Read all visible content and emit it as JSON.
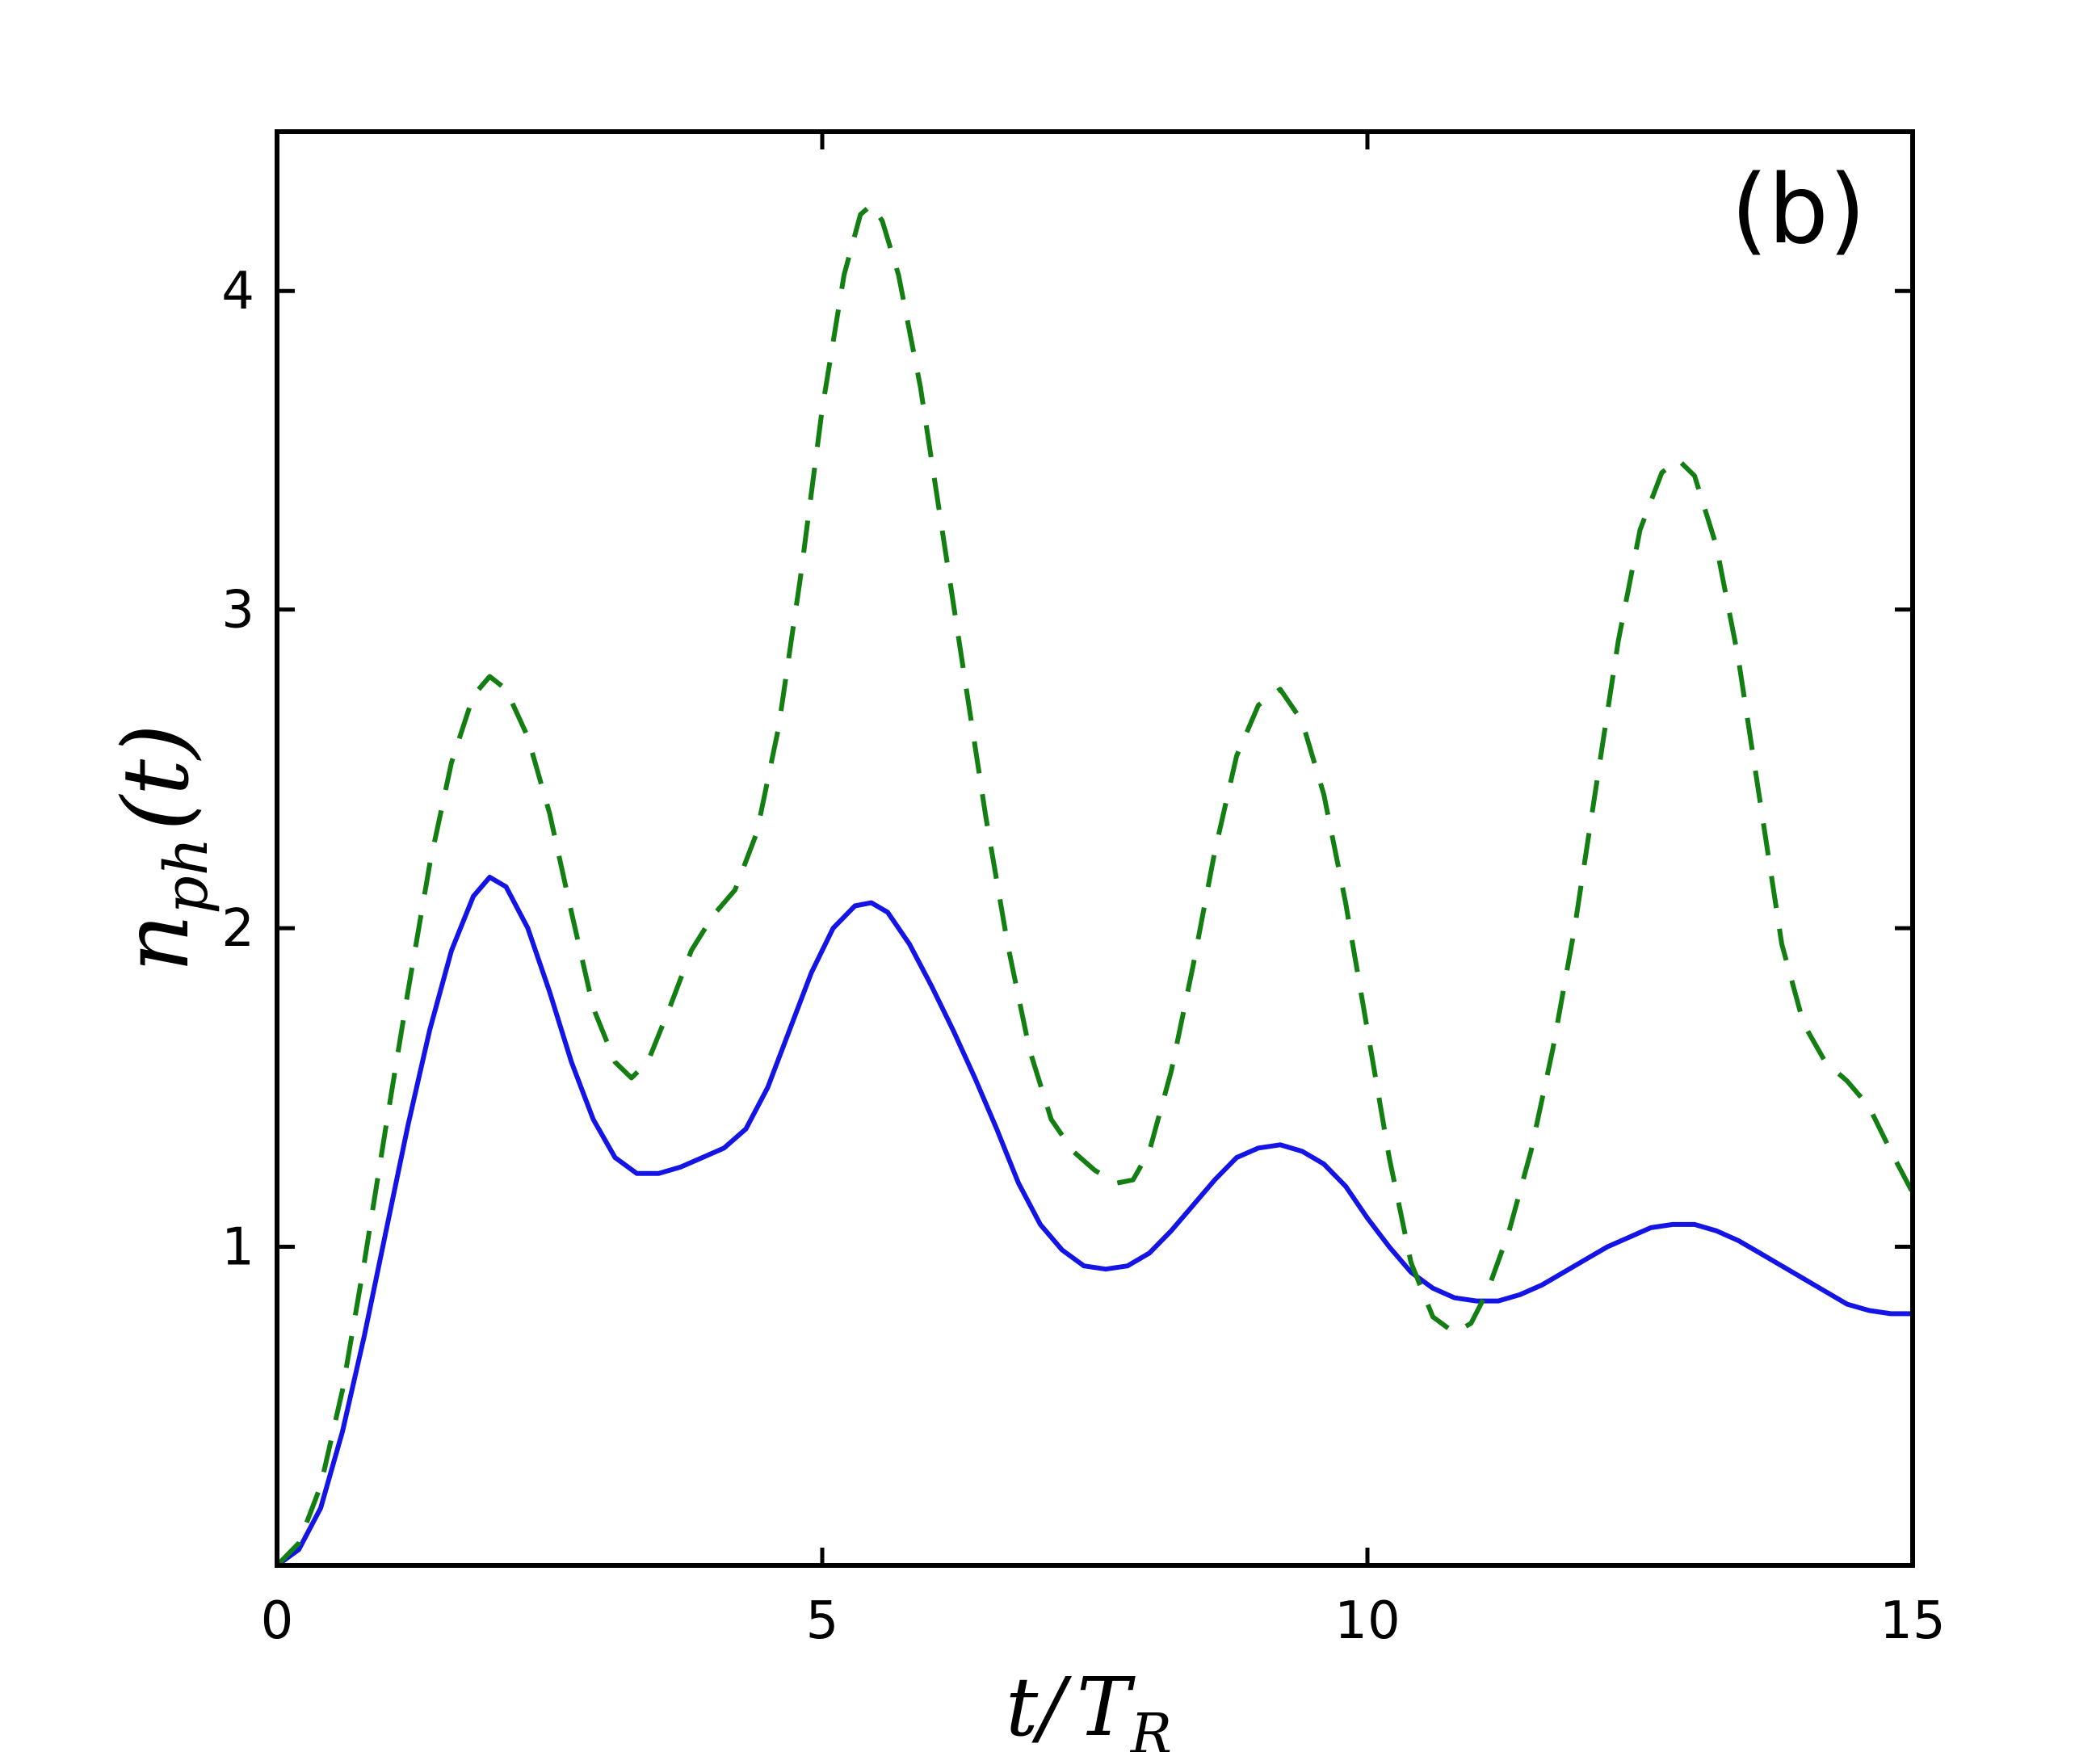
{
  "chart_data": {
    "type": "line",
    "panel_label": "(b)",
    "xlabel": {
      "main": "t/",
      "symbol": "T",
      "subscript": "R"
    },
    "ylabel": {
      "symbol": "n",
      "subscript": "ph",
      "argument": "(t)"
    },
    "xlim": [
      0,
      15
    ],
    "ylim": [
      0,
      4.5
    ],
    "xticks": [
      0,
      5,
      10,
      15
    ],
    "yticks": [
      1,
      2,
      3,
      4
    ],
    "grid": false,
    "series": [
      {
        "style": "solid",
        "color": "#1414e6",
        "points": [
          [
            0,
            0
          ],
          [
            0.2,
            0.05
          ],
          [
            0.4,
            0.18
          ],
          [
            0.6,
            0.42
          ],
          [
            0.8,
            0.72
          ],
          [
            1.0,
            1.05
          ],
          [
            1.2,
            1.38
          ],
          [
            1.4,
            1.68
          ],
          [
            1.6,
            1.93
          ],
          [
            1.8,
            2.1
          ],
          [
            1.95,
            2.16
          ],
          [
            2.1,
            2.13
          ],
          [
            2.3,
            2.0
          ],
          [
            2.5,
            1.8
          ],
          [
            2.7,
            1.58
          ],
          [
            2.9,
            1.4
          ],
          [
            3.1,
            1.28
          ],
          [
            3.3,
            1.23
          ],
          [
            3.5,
            1.23
          ],
          [
            3.7,
            1.25
          ],
          [
            3.9,
            1.28
          ],
          [
            4.1,
            1.31
          ],
          [
            4.3,
            1.37
          ],
          [
            4.5,
            1.5
          ],
          [
            4.7,
            1.68
          ],
          [
            4.9,
            1.86
          ],
          [
            5.1,
            2.0
          ],
          [
            5.3,
            2.07
          ],
          [
            5.45,
            2.08
          ],
          [
            5.6,
            2.05
          ],
          [
            5.8,
            1.95
          ],
          [
            6.0,
            1.82
          ],
          [
            6.2,
            1.68
          ],
          [
            6.4,
            1.53
          ],
          [
            6.6,
            1.37
          ],
          [
            6.8,
            1.2
          ],
          [
            7.0,
            1.07
          ],
          [
            7.2,
            0.99
          ],
          [
            7.4,
            0.94
          ],
          [
            7.6,
            0.93
          ],
          [
            7.8,
            0.94
          ],
          [
            8.0,
            0.98
          ],
          [
            8.2,
            1.05
          ],
          [
            8.4,
            1.13
          ],
          [
            8.6,
            1.21
          ],
          [
            8.8,
            1.28
          ],
          [
            9.0,
            1.31
          ],
          [
            9.2,
            1.32
          ],
          [
            9.4,
            1.3
          ],
          [
            9.6,
            1.26
          ],
          [
            9.8,
            1.19
          ],
          [
            10.0,
            1.09
          ],
          [
            10.2,
            1.0
          ],
          [
            10.4,
            0.92
          ],
          [
            10.6,
            0.87
          ],
          [
            10.8,
            0.84
          ],
          [
            11.0,
            0.83
          ],
          [
            11.2,
            0.83
          ],
          [
            11.4,
            0.85
          ],
          [
            11.6,
            0.88
          ],
          [
            11.8,
            0.92
          ],
          [
            12.0,
            0.96
          ],
          [
            12.2,
            1.0
          ],
          [
            12.4,
            1.03
          ],
          [
            12.6,
            1.06
          ],
          [
            12.8,
            1.07
          ],
          [
            13.0,
            1.07
          ],
          [
            13.2,
            1.05
          ],
          [
            13.4,
            1.02
          ],
          [
            13.6,
            0.98
          ],
          [
            13.8,
            0.94
          ],
          [
            14.0,
            0.9
          ],
          [
            14.2,
            0.86
          ],
          [
            14.4,
            0.82
          ],
          [
            14.6,
            0.8
          ],
          [
            14.8,
            0.79
          ],
          [
            15.0,
            0.79
          ]
        ]
      },
      {
        "style": "dashed",
        "color": "#137f13",
        "points": [
          [
            0,
            0
          ],
          [
            0.2,
            0.07
          ],
          [
            0.4,
            0.25
          ],
          [
            0.6,
            0.55
          ],
          [
            0.8,
            0.95
          ],
          [
            1.0,
            1.38
          ],
          [
            1.2,
            1.8
          ],
          [
            1.4,
            2.2
          ],
          [
            1.6,
            2.52
          ],
          [
            1.8,
            2.73
          ],
          [
            1.95,
            2.79
          ],
          [
            2.1,
            2.75
          ],
          [
            2.3,
            2.6
          ],
          [
            2.5,
            2.36
          ],
          [
            2.7,
            2.05
          ],
          [
            2.9,
            1.75
          ],
          [
            3.1,
            1.58
          ],
          [
            3.25,
            1.53
          ],
          [
            3.4,
            1.58
          ],
          [
            3.6,
            1.75
          ],
          [
            3.8,
            1.93
          ],
          [
            4.0,
            2.04
          ],
          [
            4.2,
            2.12
          ],
          [
            4.4,
            2.3
          ],
          [
            4.6,
            2.63
          ],
          [
            4.8,
            3.1
          ],
          [
            5.0,
            3.63
          ],
          [
            5.2,
            4.05
          ],
          [
            5.35,
            4.24
          ],
          [
            5.45,
            4.27
          ],
          [
            5.55,
            4.22
          ],
          [
            5.7,
            4.05
          ],
          [
            5.9,
            3.7
          ],
          [
            6.1,
            3.25
          ],
          [
            6.3,
            2.8
          ],
          [
            6.5,
            2.35
          ],
          [
            6.7,
            1.95
          ],
          [
            6.9,
            1.62
          ],
          [
            7.1,
            1.4
          ],
          [
            7.3,
            1.3
          ],
          [
            7.5,
            1.24
          ],
          [
            7.7,
            1.2
          ],
          [
            7.85,
            1.21
          ],
          [
            8.0,
            1.3
          ],
          [
            8.2,
            1.55
          ],
          [
            8.4,
            1.88
          ],
          [
            8.6,
            2.24
          ],
          [
            8.8,
            2.54
          ],
          [
            9.0,
            2.7
          ],
          [
            9.2,
            2.75
          ],
          [
            9.4,
            2.65
          ],
          [
            9.6,
            2.42
          ],
          [
            9.8,
            2.08
          ],
          [
            10.0,
            1.68
          ],
          [
            10.2,
            1.28
          ],
          [
            10.4,
            0.95
          ],
          [
            10.6,
            0.78
          ],
          [
            10.8,
            0.73
          ],
          [
            10.95,
            0.76
          ],
          [
            11.1,
            0.86
          ],
          [
            11.3,
            1.05
          ],
          [
            11.5,
            1.3
          ],
          [
            11.7,
            1.62
          ],
          [
            11.9,
            2.0
          ],
          [
            12.1,
            2.45
          ],
          [
            12.3,
            2.9
          ],
          [
            12.5,
            3.25
          ],
          [
            12.7,
            3.43
          ],
          [
            12.85,
            3.47
          ],
          [
            13.0,
            3.42
          ],
          [
            13.2,
            3.2
          ],
          [
            13.4,
            2.85
          ],
          [
            13.6,
            2.4
          ],
          [
            13.8,
            1.95
          ],
          [
            14.0,
            1.7
          ],
          [
            14.2,
            1.58
          ],
          [
            14.4,
            1.52
          ],
          [
            14.6,
            1.44
          ],
          [
            14.8,
            1.3
          ],
          [
            15.0,
            1.17
          ]
        ]
      }
    ]
  }
}
